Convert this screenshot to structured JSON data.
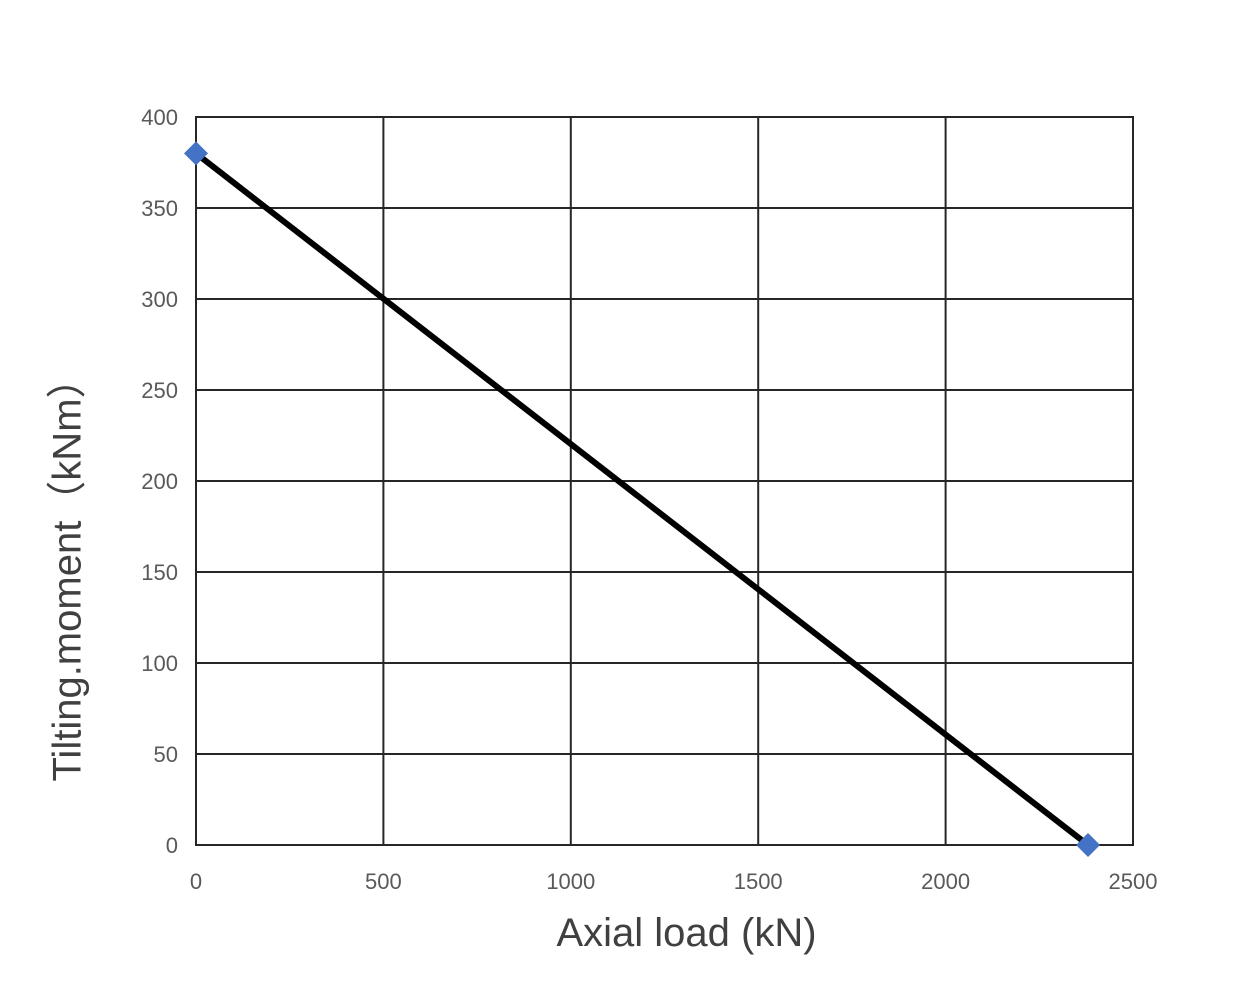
{
  "chart_data": {
    "type": "scatter",
    "title": "",
    "xlabel": "Axial load (kN)",
    "ylabel": "Tilting.moment（kNm）",
    "xlim": [
      0,
      2500
    ],
    "ylim": [
      0,
      400
    ],
    "x_ticks": [
      "0",
      "500",
      "1000",
      "1500",
      "2000",
      "2500"
    ],
    "y_ticks": [
      "0",
      "50",
      "100",
      "150",
      "200",
      "250",
      "300",
      "350",
      "400"
    ],
    "grid": true,
    "legend": "none",
    "series": [
      {
        "x": [
          0,
          2380
        ],
        "y": [
          380,
          0
        ],
        "line_color": "#000000",
        "marker": "diamond",
        "marker_color": "#4472C4"
      }
    ]
  }
}
